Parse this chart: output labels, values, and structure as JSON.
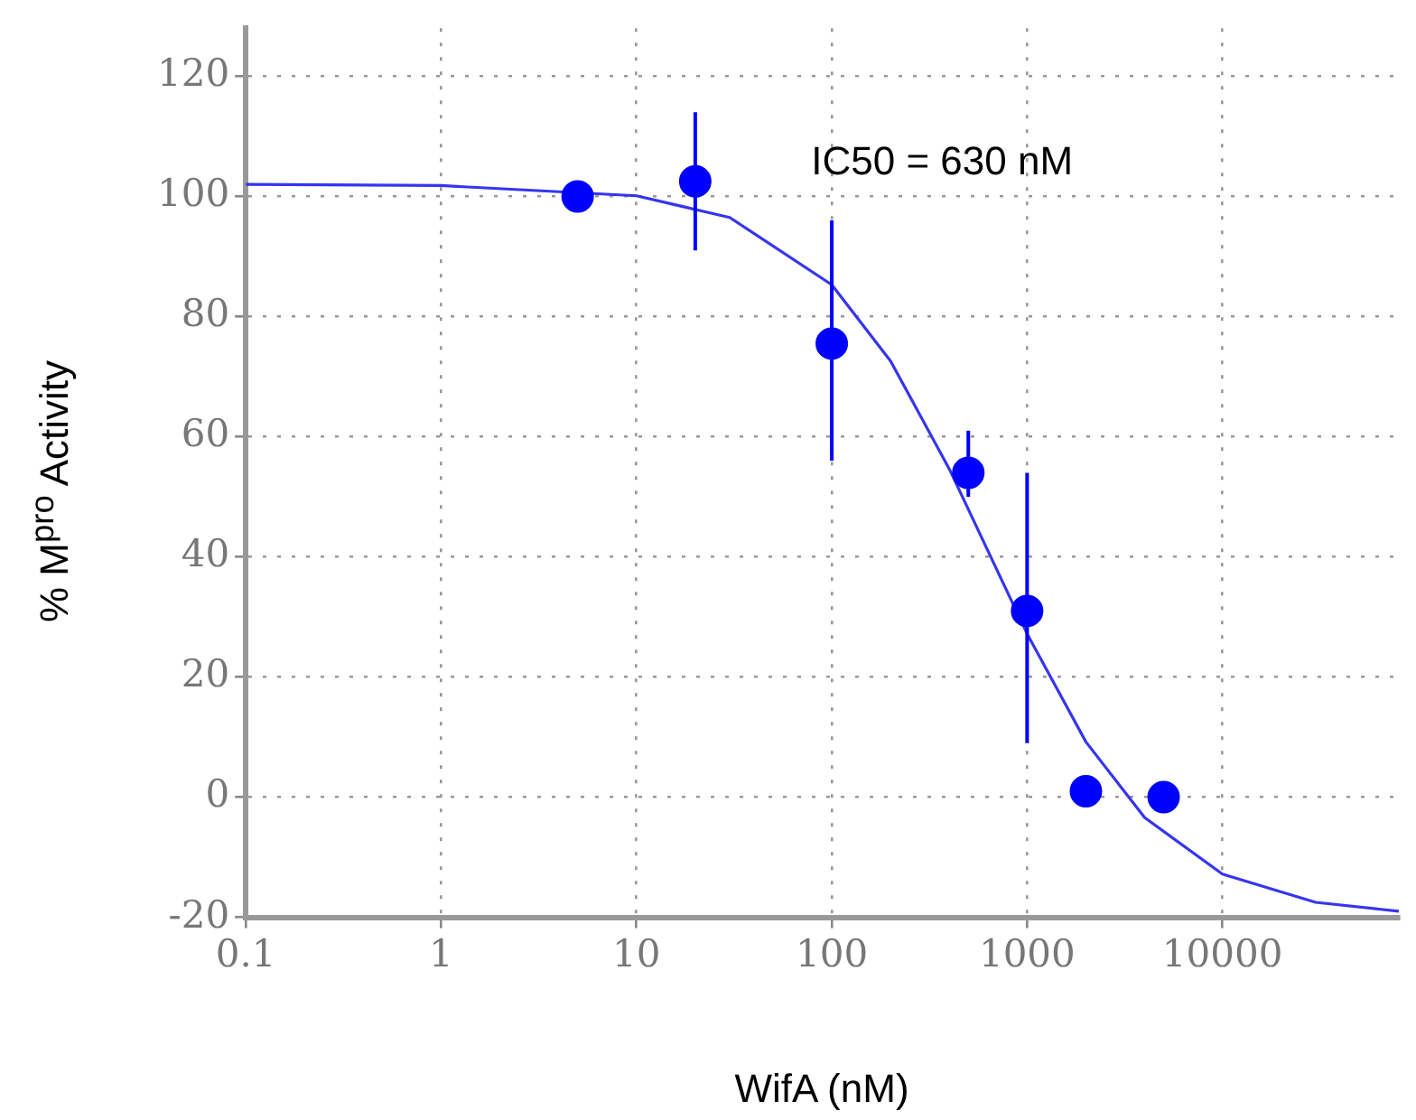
{
  "chart_data": {
    "type": "scatter",
    "xlabel": "WifA (nM)",
    "ylabel": "% M$^{pro}$ Activity",
    "annotations": [
      "IC50 = 630 nM"
    ],
    "log": "x",
    "grid": true,
    "marker": "circle",
    "xlim": [
      0.1,
      80000
    ],
    "xticks": [
      0.1,
      1,
      10,
      100,
      1000,
      10000
    ],
    "ylim": [
      -20,
      128
    ],
    "yticks": [
      -20,
      0,
      20,
      40,
      60,
      80,
      100,
      120
    ],
    "series": [
      {
        "color": "#0000ff",
        "x": [
          5,
          20,
          100,
          500,
          1000,
          2000,
          5000
        ],
        "values": [
          100,
          102.5,
          75.5,
          54,
          31,
          1,
          0
        ],
        "errors": [
          null,
          [
            91,
            114
          ],
          [
            56,
            96
          ],
          [
            50,
            61
          ],
          [
            9,
            54
          ],
          null,
          null
        ]
      },
      {
        "type": "line",
        "color": "#3535f0",
        "marker": "none",
        "x": [
          0.1,
          1,
          10,
          30,
          100,
          200,
          400,
          630,
          1000,
          2000,
          4000,
          10000,
          30000,
          80000
        ],
        "values": [
          102,
          101.8,
          100.1,
          96.5,
          85.3,
          72.6,
          54.6,
          41,
          27.2,
          9.2,
          -3.4,
          -12.8,
          -17.5,
          -19
        ]
      }
    ]
  }
}
